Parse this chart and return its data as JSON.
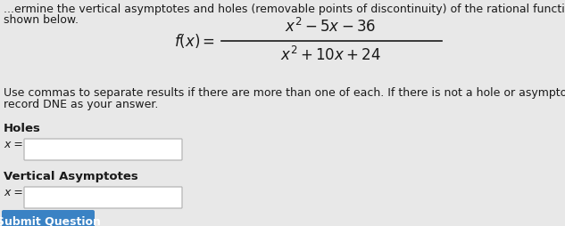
{
  "bg_color": "#e8e8e8",
  "text_color": "#1a1a1a",
  "input_bg": "#ffffff",
  "input_border": "#bbbbbb",
  "submit_bg": "#3a82c4",
  "submit_text": "#ffffff",
  "line1": "...ermine the vertical asymptotes and holes (removable points of discontinuity) of the rational function",
  "line2": "shown below.",
  "numerator": "$x^2-5x-36$",
  "denominator": "$x^2+10x+24$",
  "instruction1": "Use commas to separate results if there are more than one of each. If there is not a hole or asymptote,",
  "instruction2": "record DNE as your answer.",
  "holes_label": "Holes",
  "va_label": "Vertical Asymptotes",
  "x_eq": "x =",
  "submit_label": "Submit Question",
  "fs_main": 9.0,
  "fs_label": 9.5,
  "fs_math": 12.0,
  "figw": 6.33,
  "figh": 2.54,
  "dpi": 100
}
